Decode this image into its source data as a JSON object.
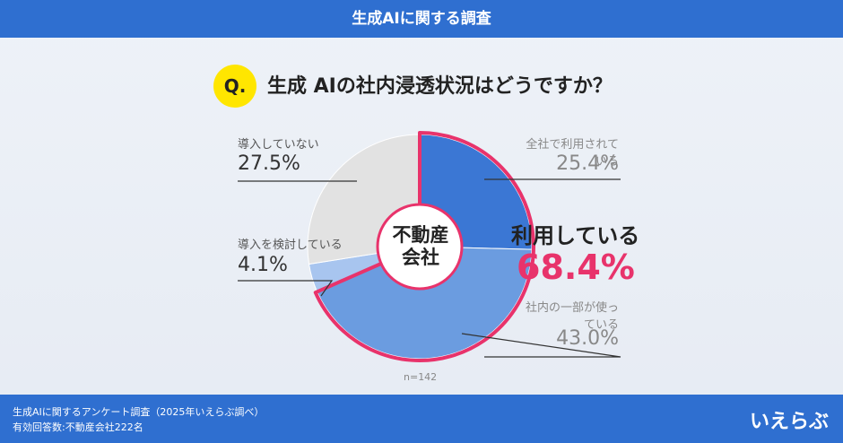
{
  "header": {
    "title": "生成AIに関する調査"
  },
  "question": {
    "marker": "Q.",
    "text": "生成 AIの社内浸透状況はどうですか？"
  },
  "chart_data": {
    "type": "donut",
    "center_label": "不動産会社",
    "categories": [
      "全社で利用されている",
      "社内の一部が使っている",
      "導入を検討している",
      "導入していない"
    ],
    "values": [
      25.4,
      43.0,
      4.1,
      27.5
    ],
    "value_labels": [
      "25.4%",
      "43.0%",
      "4.1%",
      "27.5%"
    ],
    "colors": [
      "#3b77d4",
      "#6b9ce0",
      "#a8c5ef",
      "#e2e2e2"
    ],
    "highlight": {
      "label": "利用している",
      "value": 68.4,
      "value_label": "68.4%",
      "color": "#e8336b"
    },
    "note": "n=142"
  },
  "footer": {
    "lines": [
      "生成AIに関するアンケート調査（2025年いえらぶ調べ）",
      "有効回答数:不動産会社222名"
    ],
    "logo": "いえらぶ"
  }
}
